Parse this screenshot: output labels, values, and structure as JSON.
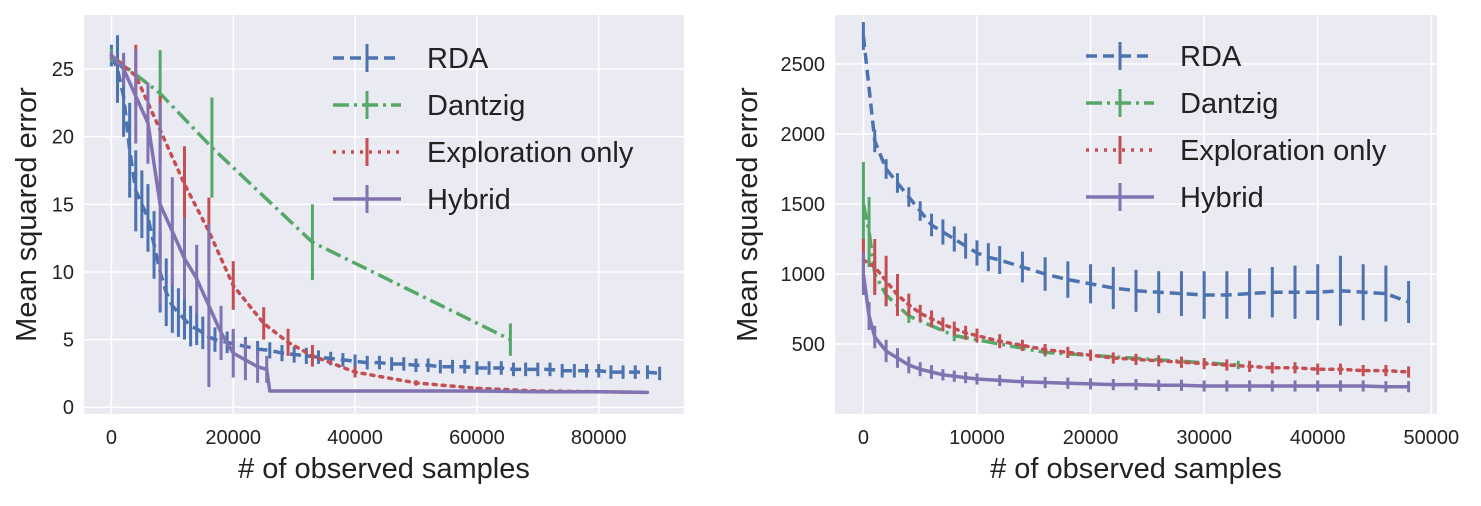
{
  "figure": {
    "panel_count": 2
  },
  "chart_data": [
    {
      "type": "line",
      "xlabel": "# of observed samples",
      "ylabel": "Mean squared error",
      "xlim": [
        -4500,
        94000
      ],
      "ylim": [
        -0.5,
        29
      ],
      "xticks": [
        0,
        20000,
        40000,
        60000,
        80000
      ],
      "xtick_labels": [
        "0",
        "20000",
        "40000",
        "60000",
        "80000"
      ],
      "yticks": [
        0,
        5,
        10,
        15,
        20,
        25
      ],
      "ytick_labels": [
        "0",
        "5",
        "10",
        "15",
        "20",
        "25"
      ],
      "grid": true,
      "legend_position": "top-right",
      "series": [
        {
          "name": "RDA",
          "color": "#4c72b0",
          "style": "dashed",
          "x": [
            0,
            1000,
            2000,
            3000,
            4000,
            5000,
            6000,
            7000,
            8000,
            9000,
            10000,
            11000,
            12000,
            13000,
            14000,
            15000,
            16000,
            17000,
            18000,
            19000,
            20000,
            22000,
            24000,
            26000,
            28000,
            30000,
            32000,
            34000,
            36000,
            38000,
            40000,
            42000,
            44000,
            46000,
            48000,
            50000,
            52000,
            54000,
            56000,
            58000,
            60000,
            62000,
            64000,
            66000,
            68000,
            70000,
            72000,
            74000,
            76000,
            78000,
            80000,
            82000,
            84000,
            86000,
            88000,
            90000
          ],
          "y": [
            26,
            25,
            23,
            19,
            16,
            15,
            14,
            12,
            10,
            8.5,
            7.5,
            7,
            6.5,
            6,
            5.8,
            5.5,
            5.2,
            5,
            4.9,
            4.8,
            4.7,
            4.5,
            4.3,
            4.2,
            4.0,
            3.9,
            3.8,
            3.7,
            3.6,
            3.5,
            3.4,
            3.3,
            3.3,
            3.2,
            3.2,
            3.1,
            3.1,
            3.0,
            3.0,
            3.0,
            2.9,
            2.9,
            2.9,
            2.8,
            2.8,
            2.8,
            2.8,
            2.7,
            2.7,
            2.7,
            2.7,
            2.6,
            2.6,
            2.6,
            2.6,
            2.5
          ],
          "err": [
            0.8,
            2.5,
            3,
            3.5,
            3,
            2.5,
            2.5,
            2.5,
            3,
            2.5,
            2,
            1.8,
            1.5,
            1.5,
            1.2,
            1.2,
            1,
            0.9,
            0.8,
            0.8,
            0.7,
            0.7,
            0.6,
            0.6,
            0.6,
            0.6,
            0.6,
            0.5,
            0.5,
            0.5,
            0.5,
            0.5,
            0.5,
            0.5,
            0.5,
            0.5,
            0.5,
            0.5,
            0.5,
            0.5,
            0.5,
            0.5,
            0.5,
            0.5,
            0.5,
            0.5,
            0.5,
            0.5,
            0.5,
            0.5,
            0.5,
            0.5,
            0.5,
            0.5,
            0.5,
            0.5
          ]
        },
        {
          "name": "Dantzig",
          "color": "#55a868",
          "style": "dashdot",
          "x": [
            0,
            8000,
            16500,
            33000,
            65500
          ],
          "y": [
            26,
            23.2,
            19.2,
            12.2,
            5
          ],
          "err": [
            0.5,
            3.2,
            3.7,
            2.8,
            1.2
          ]
        },
        {
          "name": "Exploration only",
          "color": "#c44e52",
          "style": "dotted",
          "x": [
            0,
            4000,
            8000,
            12000,
            16000,
            20000,
            25000,
            29000,
            33000,
            40000,
            50000,
            60000,
            70000,
            80000,
            88000
          ],
          "y": [
            26,
            24.5,
            20.5,
            16.5,
            13,
            9,
            6.2,
            4.8,
            3.8,
            2.6,
            1.8,
            1.4,
            1.2,
            1.15,
            1.1
          ],
          "err": [
            0.3,
            2.3,
            2.5,
            2.8,
            2.5,
            1.8,
            1.2,
            1,
            0.8,
            0.4,
            0.2,
            0.1,
            0.1,
            0.1,
            0.1
          ]
        },
        {
          "name": "Hybrid",
          "color": "#8172b2",
          "style": "solid",
          "x": [
            0,
            2000,
            4000,
            6000,
            8000,
            10000,
            12000,
            14000,
            16000,
            18000,
            20000,
            22000,
            24000,
            25500,
            26000,
            30000,
            40000,
            50000,
            60000,
            70000,
            80000,
            88000
          ],
          "y": [
            26,
            25,
            23,
            21,
            15,
            13,
            11,
            9.5,
            7.5,
            5.5,
            4,
            3.5,
            3.0,
            2.8,
            1.2,
            1.2,
            1.2,
            1.2,
            1.2,
            1.15,
            1.15,
            1.1
          ],
          "err": [
            0.3,
            1.2,
            3.5,
            3,
            7.5,
            4,
            3,
            2.5,
            6,
            2,
            1.8,
            1.5,
            1.2,
            1,
            0.1,
            0.1,
            0.1,
            0.1,
            0.1,
            0.1,
            0.1,
            0.1
          ]
        }
      ]
    },
    {
      "type": "line",
      "xlabel": "# of observed samples",
      "ylabel": "Mean squared error",
      "xlim": [
        -2500,
        50500
      ],
      "ylim": [
        0,
        2850
      ],
      "xticks": [
        0,
        10000,
        20000,
        30000,
        40000,
        50000
      ],
      "xtick_labels": [
        "0",
        "10000",
        "20000",
        "30000",
        "40000",
        "50000"
      ],
      "yticks": [
        500,
        1000,
        1500,
        2000,
        2500
      ],
      "ytick_labels": [
        "500",
        "1000",
        "1500",
        "2000",
        "2500"
      ],
      "grid": true,
      "legend_position": "top-right",
      "series": [
        {
          "name": "RDA",
          "color": "#4c72b0",
          "style": "dashed",
          "x": [
            0,
            1000,
            2000,
            3000,
            4000,
            5000,
            6000,
            7000,
            8000,
            9000,
            10000,
            11000,
            12000,
            14000,
            16000,
            18000,
            20000,
            22000,
            24000,
            26000,
            28000,
            30000,
            32000,
            34000,
            36000,
            38000,
            40000,
            42000,
            44000,
            46000,
            48000
          ],
          "y": [
            2700,
            1950,
            1750,
            1650,
            1550,
            1450,
            1350,
            1300,
            1250,
            1200,
            1150,
            1120,
            1100,
            1050,
            1000,
            960,
            930,
            900,
            880,
            870,
            860,
            850,
            850,
            860,
            870,
            870,
            870,
            880,
            870,
            860,
            800
          ],
          "err": [
            100,
            80,
            70,
            70,
            70,
            70,
            80,
            90,
            90,
            90,
            90,
            100,
            100,
            110,
            120,
            130,
            140,
            150,
            150,
            150,
            160,
            170,
            170,
            180,
            180,
            190,
            200,
            250,
            200,
            200,
            150
          ]
        },
        {
          "name": "Dantzig",
          "color": "#55a868",
          "style": "dashdot",
          "x": [
            0,
            500,
            1000,
            2000,
            4000,
            8000,
            16000,
            33000
          ],
          "y": [
            1500,
            1300,
            1000,
            850,
            700,
            560,
            440,
            350
          ],
          "err": [
            300,
            250,
            120,
            80,
            50,
            40,
            30,
            30
          ]
        },
        {
          "name": "Exploration only",
          "color": "#c44e52",
          "style": "dotted",
          "x": [
            0,
            1000,
            2000,
            3000,
            4000,
            5000,
            6000,
            7000,
            8000,
            9000,
            10000,
            12000,
            14000,
            16000,
            18000,
            20000,
            22000,
            24000,
            26000,
            28000,
            30000,
            32000,
            34000,
            36000,
            38000,
            40000,
            42000,
            44000,
            46000,
            48000
          ],
          "y": [
            1100,
            1050,
            950,
            850,
            780,
            720,
            680,
            640,
            610,
            580,
            560,
            520,
            490,
            460,
            440,
            420,
            400,
            390,
            380,
            370,
            360,
            350,
            340,
            330,
            330,
            320,
            320,
            310,
            310,
            300
          ],
          "err": [
            150,
            200,
            180,
            150,
            80,
            60,
            60,
            50,
            50,
            50,
            50,
            50,
            40,
            40,
            40,
            40,
            40,
            40,
            40,
            40,
            40,
            40,
            40,
            40,
            40,
            40,
            40,
            40,
            40,
            40
          ]
        },
        {
          "name": "Hybrid",
          "color": "#8172b2",
          "style": "solid",
          "x": [
            0,
            500,
            1000,
            2000,
            3000,
            4000,
            5000,
            6000,
            7000,
            8000,
            9000,
            10000,
            12000,
            14000,
            16000,
            18000,
            20000,
            22000,
            24000,
            26000,
            28000,
            30000,
            32000,
            34000,
            36000,
            38000,
            40000,
            42000,
            44000,
            46000,
            48000
          ],
          "y": [
            1000,
            700,
            550,
            450,
            400,
            350,
            320,
            300,
            280,
            270,
            260,
            250,
            240,
            230,
            225,
            220,
            215,
            210,
            210,
            205,
            205,
            200,
            200,
            200,
            200,
            200,
            200,
            200,
            200,
            195,
            195
          ],
          "err": [
            150,
            100,
            80,
            80,
            70,
            60,
            50,
            50,
            40,
            40,
            40,
            40,
            40,
            40,
            40,
            40,
            40,
            40,
            40,
            40,
            40,
            40,
            40,
            40,
            40,
            40,
            40,
            40,
            40,
            40,
            40
          ]
        }
      ]
    }
  ]
}
